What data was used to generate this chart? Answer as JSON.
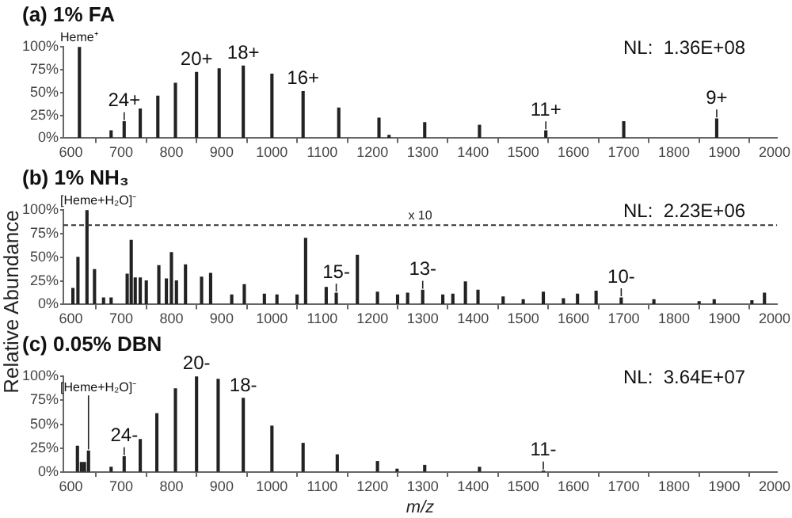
{
  "chart_data": [
    {
      "type": "bar",
      "title": "(a) 1% FA",
      "color": "#222222",
      "x": [
        617,
        680,
        706,
        738,
        773,
        808,
        850,
        895,
        943,
        1000,
        1062,
        1133,
        1213,
        1233,
        1304,
        1413,
        1545,
        1700,
        1885
      ],
      "values": [
        100,
        8,
        18,
        32,
        46,
        60,
        72,
        76,
        79,
        70,
        51,
        33,
        22,
        3,
        17,
        14,
        8,
        18,
        21
      ],
      "xlim": [
        585,
        2005
      ],
      "xticks": [
        600,
        700,
        800,
        900,
        1000,
        1100,
        1200,
        1300,
        1400,
        1500,
        1600,
        1700,
        1800,
        1900,
        2000
      ],
      "ylim": [
        0,
        100
      ],
      "yticks": [
        {
          "value": 0,
          "label": "0%"
        },
        {
          "value": 25,
          "label": "25%"
        },
        {
          "value": 50,
          "label": "50%"
        },
        {
          "value": 75,
          "label": "75%"
        },
        {
          "value": 100,
          "label": "100%"
        }
      ],
      "annotations": [
        "NL:  1.36E+08",
        {
          "text": "Heme⁺",
          "x": 617,
          "y": 100
        },
        {
          "text": "24+",
          "x": 706,
          "y": 18
        },
        {
          "text": "20+",
          "x": 850,
          "y": 72
        },
        {
          "text": "18+",
          "x": 943,
          "y": 79
        },
        {
          "text": "16+",
          "x": 1062,
          "y": 51
        },
        {
          "text": "11+",
          "x": 1545,
          "y": 8
        },
        {
          "text": "9+",
          "x": 1885,
          "y": 21
        }
      ],
      "grid": false,
      "legend": false
    },
    {
      "type": "bar",
      "title": "(b) 1% NH₃",
      "ylabel": "Relative Abundance",
      "color": "#222222",
      "x": [
        604,
        614,
        632,
        647,
        665,
        680,
        712,
        720,
        728,
        738,
        750,
        775,
        790,
        800,
        810,
        828,
        860,
        878,
        920,
        945,
        985,
        1010,
        1050,
        1067,
        1108,
        1128,
        1170,
        1210,
        1250,
        1270,
        1300,
        1340,
        1360,
        1385,
        1410,
        1460,
        1500,
        1540,
        1580,
        1608,
        1645,
        1695,
        1760,
        1850,
        1880,
        1955,
        1980
      ],
      "values": [
        17,
        50,
        100,
        37,
        7,
        7,
        32,
        68,
        28,
        28,
        25,
        41,
        27,
        55,
        25,
        42,
        29,
        33,
        10,
        21,
        11,
        10,
        10,
        70,
        18,
        12,
        52,
        13,
        10,
        12,
        15,
        10,
        11,
        24,
        15,
        8,
        5,
        13,
        6,
        11,
        14,
        7,
        5,
        3,
        5,
        4,
        12
      ],
      "xlim": [
        585,
        2005
      ],
      "xticks": [
        600,
        700,
        800,
        900,
        1000,
        1100,
        1200,
        1300,
        1400,
        1500,
        1600,
        1700,
        1800,
        1900,
        2000
      ],
      "ylim": [
        0,
        100
      ],
      "yticks": [
        {
          "value": 0,
          "label": "0%"
        },
        {
          "value": 25,
          "label": "25%"
        },
        {
          "value": 50,
          "label": "50%"
        },
        {
          "value": 75,
          "label": "75%"
        },
        {
          "value": 100,
          "label": "100%"
        }
      ],
      "ref_lines": [
        {
          "axis": "y",
          "value": 84,
          "label": "x 10",
          "line_style": "dashed"
        }
      ],
      "annotations": [
        "NL:  2.23E+06",
        {
          "text": "[Heme+H₂O]⁻",
          "x": 632,
          "y": 100
        },
        {
          "text": "15-",
          "x": 1128,
          "y": 12
        },
        {
          "text": "13-",
          "x": 1300,
          "y": 15
        },
        {
          "text": "10-",
          "x": 1695,
          "y": 7
        }
      ],
      "grid": false,
      "legend": false
    },
    {
      "type": "bar",
      "title": "(c) 0.05% DBN",
      "xlabel": "m/z",
      "color": "#222222",
      "x": [
        613,
        621,
        627,
        635,
        680,
        706,
        738,
        771,
        808,
        850,
        893,
        943,
        1000,
        1062,
        1130,
        1210,
        1249,
        1304,
        1413,
        1540
      ],
      "values": [
        27,
        10,
        10,
        22,
        5,
        16,
        34,
        61,
        87,
        100,
        97,
        77,
        48,
        30,
        18,
        11,
        3,
        7,
        5,
        1
      ],
      "xlim": [
        585,
        2005
      ],
      "xticks": [
        600,
        700,
        800,
        900,
        1000,
        1100,
        1200,
        1300,
        1400,
        1500,
        1600,
        1700,
        1800,
        1900,
        2000
      ],
      "ylim": [
        0,
        100
      ],
      "yticks": [
        {
          "value": 0,
          "label": "0%"
        },
        {
          "value": 25,
          "label": "25%"
        },
        {
          "value": 50,
          "label": "50%"
        },
        {
          "value": 75,
          "label": "75%"
        },
        {
          "value": 100,
          "label": "100%"
        }
      ],
      "annotations": [
        "NL:  3.64E+07",
        {
          "text": "[Heme+H₂O]⁻",
          "x": 635,
          "y": 22
        },
        {
          "text": "24-",
          "x": 706,
          "y": 16
        },
        {
          "text": "20-",
          "x": 850,
          "y": 100
        },
        {
          "text": "18-",
          "x": 943,
          "y": 77
        },
        {
          "text": "11-",
          "x": 1540,
          "y": 1
        }
      ],
      "grid": false,
      "legend": false
    }
  ]
}
